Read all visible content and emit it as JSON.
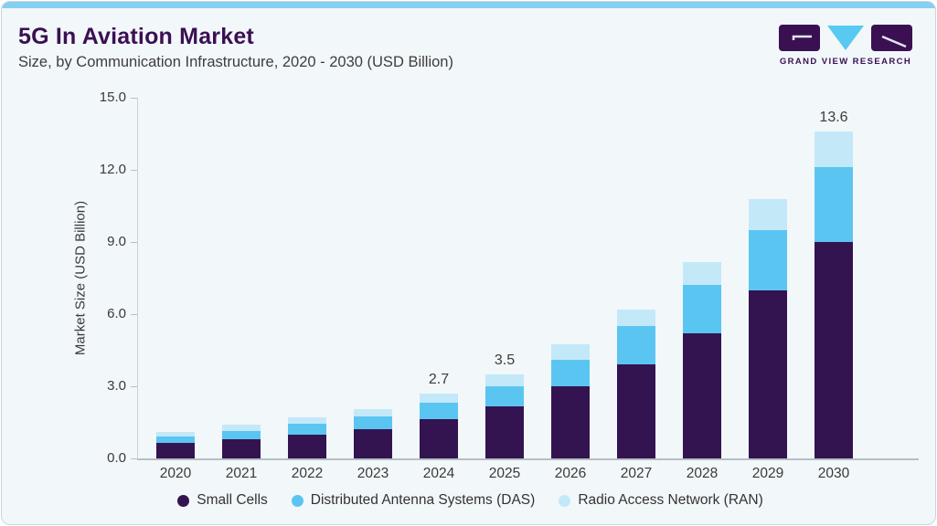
{
  "header": {
    "title": "5G In Aviation Market",
    "subtitle": "Size, by Communication Infrastructure, 2020 - 2030 (USD Billion)"
  },
  "logo": {
    "text": "GRAND VIEW RESEARCH"
  },
  "colors": {
    "brand_purple": "#3b1053",
    "small_cells": "#331450",
    "das": "#5bc5f2",
    "ran": "#c3e9f9",
    "top_strip": "#85d0f0",
    "card_bg": "#f2f7fa"
  },
  "chart_data": {
    "type": "bar",
    "stacked": true,
    "title": "5G In Aviation Market Size, by Communication Infrastructure, 2020 - 2030 (USD Billion)",
    "categories": [
      "2020",
      "2021",
      "2022",
      "2023",
      "2024",
      "2025",
      "2026",
      "2027",
      "2028",
      "2029",
      "2030"
    ],
    "series": [
      {
        "name": "Small Cells",
        "color": "#331450",
        "values": [
          0.65,
          0.8,
          1.0,
          1.2,
          1.65,
          2.15,
          3.0,
          3.9,
          5.2,
          7.0,
          9.0
        ]
      },
      {
        "name": "Distributed Antenna Systems (DAS)",
        "color": "#5bc5f2",
        "values": [
          0.25,
          0.35,
          0.45,
          0.55,
          0.65,
          0.85,
          1.1,
          1.6,
          2.0,
          2.5,
          3.1
        ]
      },
      {
        "name": "Radio Access Network (RAN)",
        "color": "#c3e9f9",
        "values": [
          0.2,
          0.25,
          0.25,
          0.3,
          0.4,
          0.5,
          0.65,
          0.7,
          0.95,
          1.3,
          1.5
        ]
      }
    ],
    "totals_shown": [
      {
        "category": "2024",
        "label": "2.7"
      },
      {
        "category": "2025",
        "label": "3.5"
      },
      {
        "category": "2030",
        "label": "13.6"
      }
    ],
    "xlabel": "",
    "ylabel": "Market Size (USD Billion)",
    "ylim": [
      0,
      15
    ],
    "yticks": [
      "0.0",
      "3.0",
      "6.0",
      "9.0",
      "12.0",
      "15.0"
    ],
    "grid": false,
    "legend_position": "bottom"
  }
}
